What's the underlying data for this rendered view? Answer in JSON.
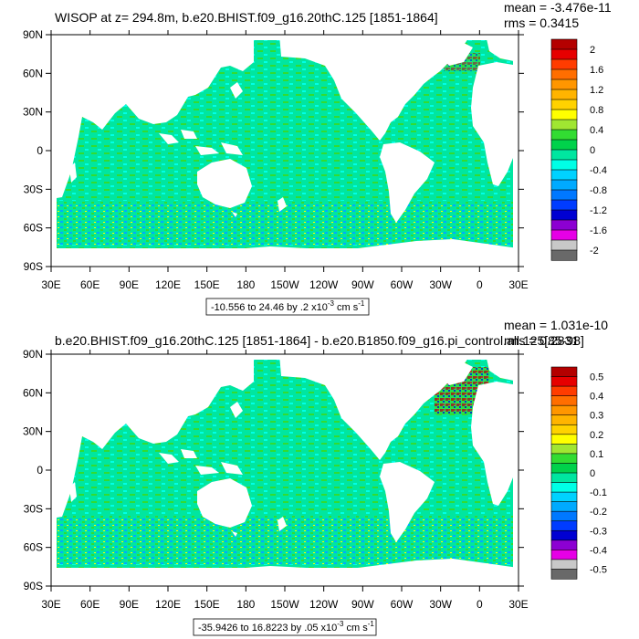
{
  "chart_data": [
    {
      "type": "heatmap",
      "title": "WISOP at z= 294.8m, b.e20.BHIST.f09_g16.20thC.125 [1851-1864]",
      "stats": {
        "mean": "mean = -3.476e-11",
        "rms": "rms = 0.3415"
      },
      "x_ticks": [
        "30E",
        "60E",
        "90E",
        "120E",
        "150E",
        "180",
        "150W",
        "120W",
        "90W",
        "60W",
        "30W",
        "0",
        "30E"
      ],
      "y_ticks": [
        "90N",
        "60N",
        "30N",
        "0",
        "30S",
        "60S",
        "90S"
      ],
      "xlim": [
        30,
        390
      ],
      "ylim": [
        -90,
        90
      ],
      "contour_info": {
        "text": "-10.556 to 24.46 by .2 x10",
        "exp": "-3",
        "units": " cm s",
        "units_exp": "-1"
      },
      "colorbar": {
        "labels": [
          "2",
          "1.6",
          "1.2",
          "0.8",
          "0.4",
          "0",
          "-0.4",
          "-0.8",
          "-1.2",
          "-1.6",
          "-2"
        ],
        "levels": [
          2.2,
          2.0,
          1.8,
          1.6,
          1.4,
          1.2,
          1.0,
          0.8,
          0.6,
          0.4,
          0.2,
          0.0,
          -0.2,
          -0.4,
          -0.6,
          -0.8,
          -1.0,
          -1.2,
          -1.4,
          -1.6,
          -1.8,
          -2.0,
          -2.2
        ]
      }
    },
    {
      "type": "heatmap",
      "title": "b.e20.BHIST.f09_g16.20thC.125 [1851-1864] - b.e20.B1850.f09_g16.pi_control.all.125[85-98]",
      "stats": {
        "mean": "mean = 1.031e-10",
        "rms": "rms = 0.2831"
      },
      "x_ticks": [
        "30E",
        "60E",
        "90E",
        "120E",
        "150E",
        "180",
        "150W",
        "120W",
        "90W",
        "60W",
        "30W",
        "0",
        "30E"
      ],
      "y_ticks": [
        "90N",
        "60N",
        "30N",
        "0",
        "30S",
        "60S",
        "90S"
      ],
      "xlim": [
        30,
        390
      ],
      "ylim": [
        -90,
        90
      ],
      "contour_info": {
        "text": "-35.9426 to 16.8223 by .05 x10",
        "exp": "-3",
        "units": " cm s",
        "units_exp": "-1"
      },
      "colorbar": {
        "labels": [
          "0.5",
          "0.4",
          "0.3",
          "0.2",
          "0.1",
          "0",
          "-0.1",
          "-0.2",
          "-0.3",
          "-0.4",
          "-0.5"
        ],
        "levels": [
          0.55,
          0.5,
          0.45,
          0.4,
          0.35,
          0.3,
          0.25,
          0.2,
          0.15,
          0.1,
          0.05,
          0.0,
          -0.05,
          -0.1,
          -0.15,
          -0.2,
          -0.25,
          -0.3,
          -0.35,
          -0.4,
          -0.45,
          -0.5,
          -0.55
        ]
      }
    }
  ],
  "colors": {
    "palette": [
      "#b40000",
      "#e60000",
      "#ff3c00",
      "#ff6e00",
      "#ff9600",
      "#ffb400",
      "#ffd200",
      "#ffff00",
      "#a0e632",
      "#32dc32",
      "#00d24b",
      "#00e6a0",
      "#00ffe6",
      "#00d2ff",
      "#00aaff",
      "#0078ff",
      "#003cff",
      "#0000d2",
      "#8c00d2",
      "#e600e6",
      "#c8c8c8",
      "#696969"
    ],
    "ocean": "#00e6a0",
    "land": "#ffffff"
  }
}
